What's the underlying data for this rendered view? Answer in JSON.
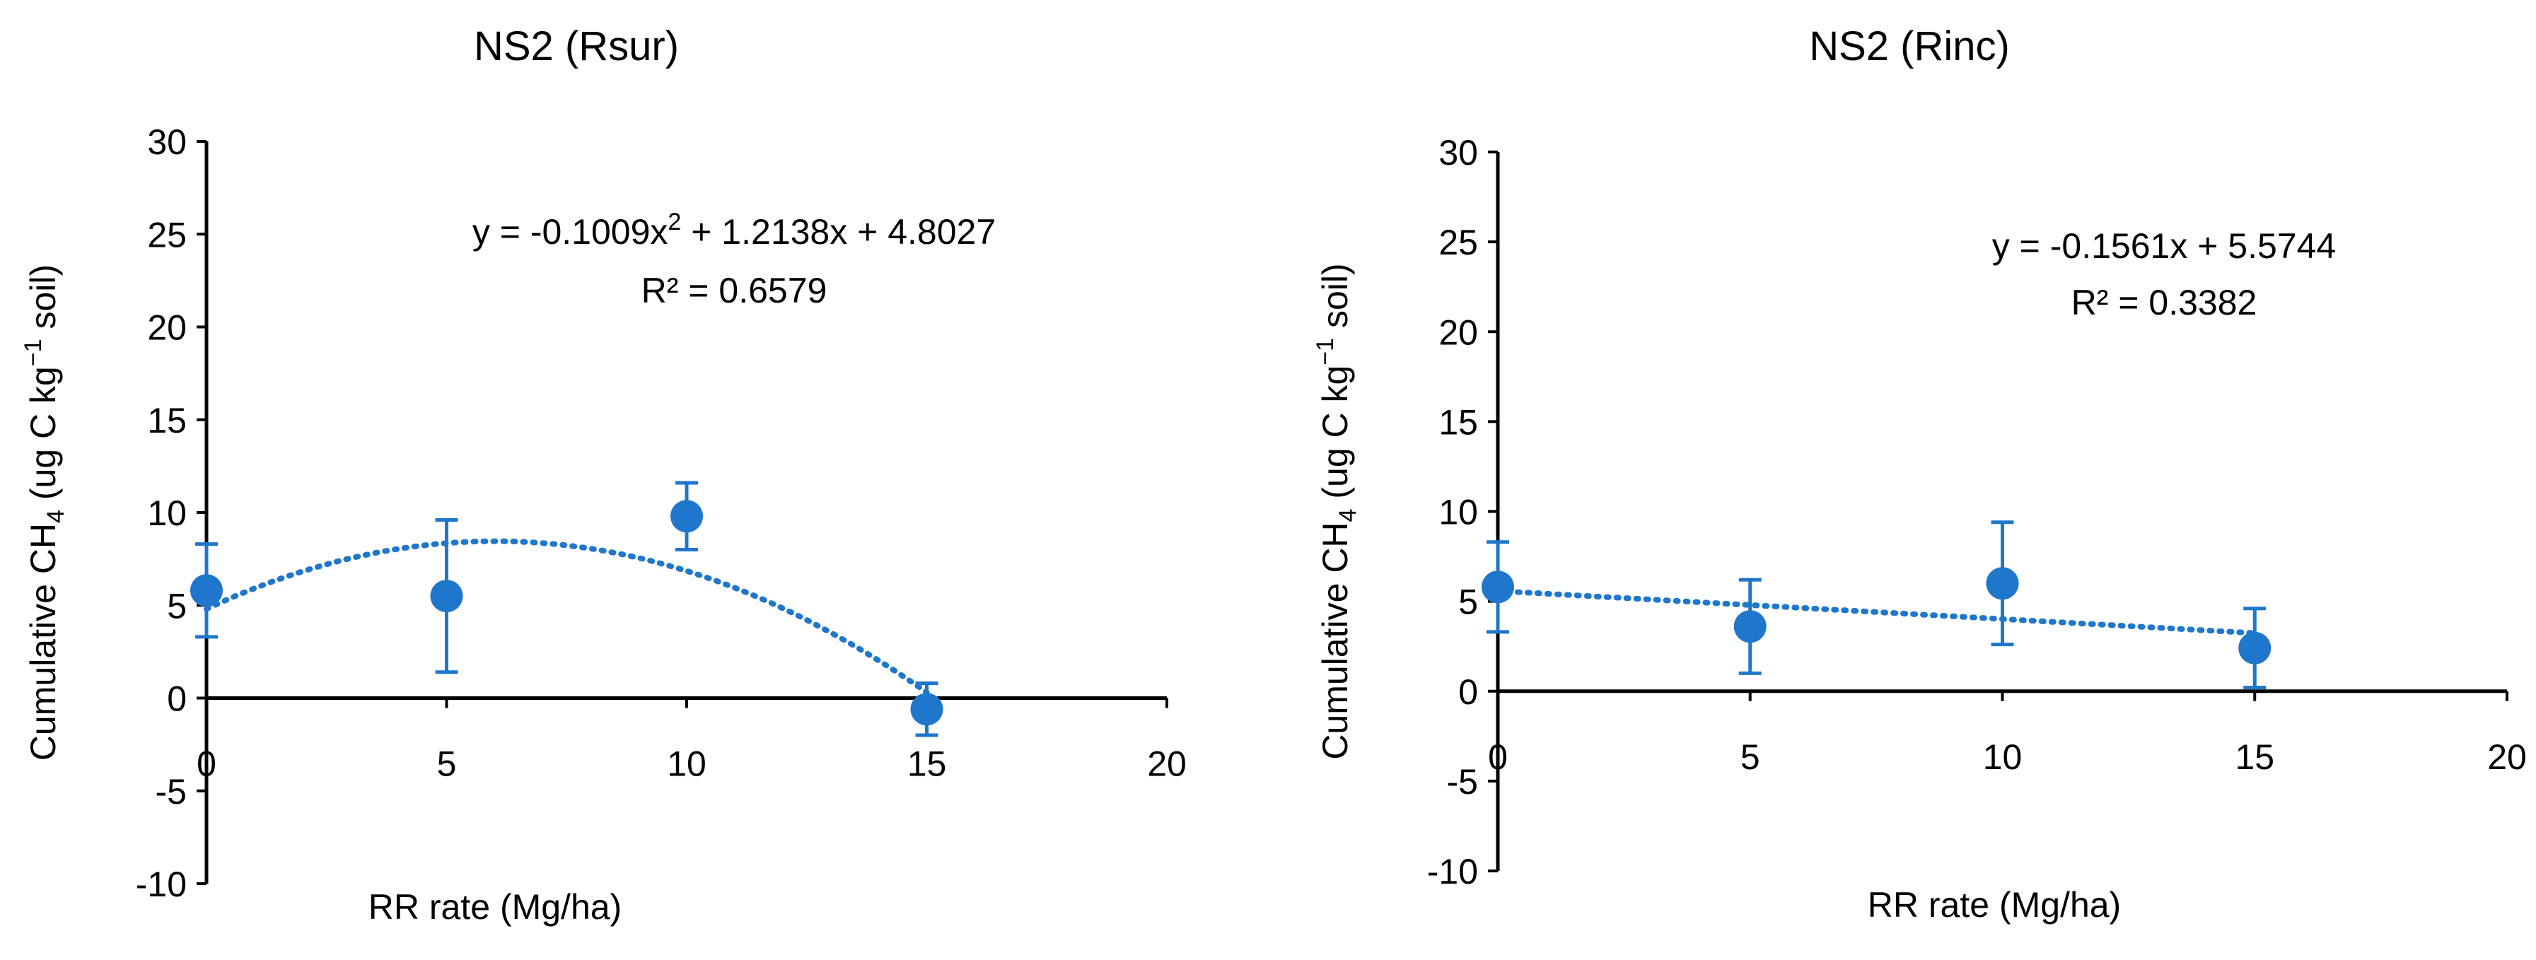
{
  "chart_data": [
    {
      "type": "scatter",
      "title": "NS2 (Rsur)",
      "xlabel": "RR rate (Mg/ha)",
      "ylabel": {
        "prefix": "Cumulative CH",
        "sub": "4",
        "mid": " (ug C kg",
        "sup": "−1",
        "suffix": " soil)"
      },
      "xlim": [
        0,
        20
      ],
      "ylim": [
        -10,
        30
      ],
      "xticks": [
        "0",
        "5",
        "10",
        "15",
        "20"
      ],
      "yticks": [
        "-10",
        "-5",
        "0",
        "5",
        "10",
        "15",
        "20",
        "25",
        "30"
      ],
      "series": [
        {
          "x": [
            0,
            5,
            10,
            15
          ],
          "y": [
            5.8,
            5.5,
            9.8,
            -0.6
          ],
          "err": [
            2.5,
            4.1,
            1.8,
            1.4
          ],
          "color": "#1F77CC"
        }
      ],
      "trendline": {
        "kind": "poly2",
        "coef": [
          -0.1009,
          1.2138,
          4.8027
        ],
        "color": "#1F77CC"
      },
      "equation": {
        "lead": "y = -0.1009x",
        "sup": "2",
        "tail": " + 1.2138x + 4.8027"
      },
      "r2": "R² = 0.6579"
    },
    {
      "type": "scatter",
      "title": "NS2 (Rinc)",
      "xlabel": "RR rate (Mg/ha)",
      "ylabel": {
        "prefix": "Cumulative CH",
        "sub": "4",
        "mid": " (ug C kg",
        "sup": "−1",
        "suffix": " soil)"
      },
      "xlim": [
        0,
        20
      ],
      "ylim": [
        -10,
        30
      ],
      "xticks": [
        "0",
        "5",
        "10",
        "15",
        "20"
      ],
      "yticks": [
        "-10",
        "-5",
        "0",
        "5",
        "10",
        "15",
        "20",
        "25",
        "30"
      ],
      "series": [
        {
          "x": [
            0,
            5,
            10,
            15
          ],
          "y": [
            5.8,
            3.6,
            6.0,
            2.4
          ],
          "err": [
            2.5,
            2.6,
            3.4,
            2.2
          ],
          "color": "#1F77CC"
        }
      ],
      "trendline": {
        "kind": "linear",
        "coef": [
          -0.1561,
          5.5744
        ],
        "color": "#1F77CC"
      },
      "equation": {
        "lead": "y = -0.1561x + 5.5744",
        "sup": "",
        "tail": ""
      },
      "r2": "R² = 0.3382"
    }
  ]
}
